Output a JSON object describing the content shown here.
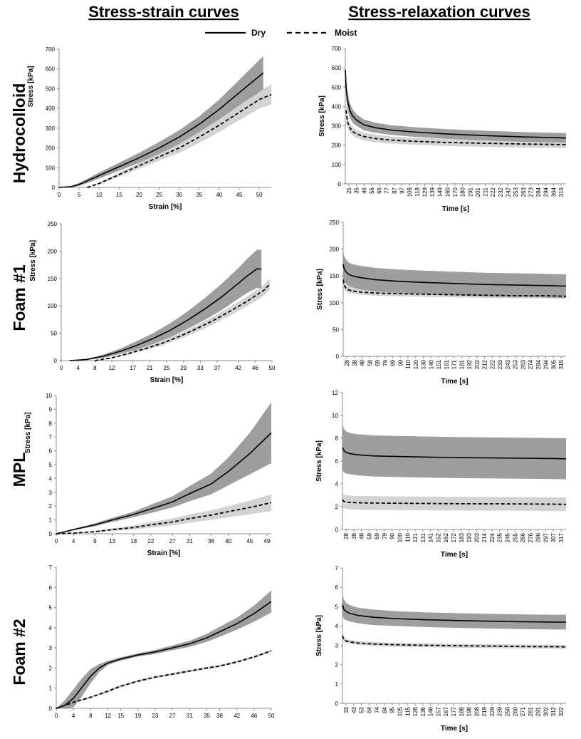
{
  "header": {
    "left_title": "Stress-strain curves",
    "right_title": "Stress-relaxation curves"
  },
  "legend": {
    "dry_label": "Dry",
    "moist_label": "Moist",
    "placement": "top-center"
  },
  "rows": [
    "Hydrocolloid",
    "Foam #1",
    "MPL",
    "Foam #2"
  ],
  "colors": {
    "dry": "#000000",
    "moist": "#000000",
    "band_dry": "#9e9e9e",
    "band_moist": "#d3d3d3",
    "axis": "#8c8c8c"
  },
  "chart_data": [
    {
      "type": "line",
      "row": "Hydrocolloid",
      "panel": "stress-strain",
      "xlabel": "Strain [%]",
      "ylabel": "Stress [kPa]",
      "x_ticks": [
        "0",
        "5",
        "10",
        "15",
        "20",
        "25",
        "30",
        "35",
        "40",
        "45",
        "50"
      ],
      "y_ticks": [
        "0",
        "100",
        "200",
        "300",
        "400",
        "500",
        "600",
        "700"
      ],
      "xlim": [
        0,
        53
      ],
      "ylim": [
        0,
        700
      ],
      "grid": false,
      "series": [
        {
          "name": "Dry",
          "style": "solid",
          "x": [
            0,
            3,
            5,
            10,
            15,
            20,
            25,
            30,
            35,
            40,
            45,
            48,
            51
          ],
          "y": [
            0,
            4,
            15,
            60,
            105,
            150,
            200,
            255,
            320,
            395,
            480,
            530,
            580
          ],
          "band": [
            0,
            3,
            8,
            15,
            20,
            25,
            30,
            35,
            40,
            50,
            65,
            75,
            85
          ]
        },
        {
          "name": "Moist",
          "style": "dashed",
          "x": [
            7,
            10,
            15,
            20,
            25,
            30,
            35,
            40,
            45,
            50,
            53
          ],
          "y": [
            0,
            20,
            65,
            110,
            155,
            200,
            255,
            315,
            380,
            445,
            470
          ],
          "band": [
            0,
            5,
            10,
            15,
            20,
            25,
            30,
            35,
            40,
            45,
            50
          ]
        }
      ]
    },
    {
      "type": "line",
      "row": "Hydrocolloid",
      "panel": "stress-relaxation",
      "xlabel": "Time [s]",
      "ylabel": "Stress [kPa]",
      "x_ticks": [
        "25",
        "35",
        "46",
        "56",
        "66",
        "77",
        "87",
        "97",
        "108",
        "118",
        "129",
        "139",
        "149",
        "160",
        "170",
        "180",
        "191",
        "201",
        "211",
        "222",
        "232",
        "242",
        "253",
        "263",
        "273",
        "284",
        "294",
        "304",
        "315"
      ],
      "y_ticks": [
        "0",
        "100",
        "200",
        "300",
        "400",
        "500",
        "600",
        "700"
      ],
      "xlim": [
        25,
        322
      ],
      "ylim": [
        0,
        700
      ],
      "grid": false,
      "series": [
        {
          "name": "Dry",
          "style": "solid",
          "x": [
            25,
            26,
            28,
            31,
            35,
            40,
            50,
            66,
            87,
            118,
            160,
            211,
            263,
            315,
            322
          ],
          "y": [
            590,
            500,
            430,
            380,
            350,
            330,
            305,
            290,
            278,
            268,
            258,
            250,
            243,
            238,
            237
          ],
          "band": [
            60,
            55,
            45,
            40,
            35,
            30,
            28,
            26,
            25,
            25,
            25,
            25,
            25,
            25,
            25
          ]
        },
        {
          "name": "Moist",
          "style": "dashed",
          "x": [
            26,
            28,
            31,
            35,
            40,
            50,
            66,
            87,
            118,
            160,
            211,
            263,
            315,
            322
          ],
          "y": [
            380,
            320,
            290,
            270,
            258,
            245,
            234,
            226,
            220,
            214,
            210,
            206,
            203,
            203
          ],
          "band": [
            40,
            30,
            25,
            22,
            20,
            20,
            20,
            18,
            18,
            18,
            18,
            18,
            18,
            18
          ]
        }
      ]
    },
    {
      "type": "line",
      "row": "Foam #1",
      "panel": "stress-strain",
      "xlabel": "Strain [%]",
      "ylabel": "Stress [kPa]",
      "x_ticks": [
        "0",
        "4",
        "8",
        "12",
        "17",
        "21",
        "25",
        "29",
        "33",
        "37",
        "42",
        "46",
        "50"
      ],
      "y_ticks": [
        "0",
        "50",
        "100",
        "150",
        "200",
        "250"
      ],
      "xlim": [
        0,
        50
      ],
      "ylim": [
        0,
        250
      ],
      "grid": false,
      "series": [
        {
          "name": "Dry",
          "style": "solid",
          "x": [
            2,
            6,
            10,
            14,
            18,
            22,
            26,
            30,
            34,
            38,
            42,
            44,
            46.5,
            47.5
          ],
          "y": [
            0,
            2,
            8,
            17,
            28,
            41,
            56,
            74,
            94,
            116,
            141,
            154,
            168,
            167
          ],
          "band": [
            0,
            1,
            3,
            5,
            8,
            10,
            13,
            16,
            20,
            24,
            28,
            31,
            35,
            35
          ]
        },
        {
          "name": "Moist",
          "style": "dashed",
          "x": [
            8,
            12,
            16,
            20,
            24,
            28,
            32,
            36,
            40,
            44,
            48,
            49.5
          ],
          "y": [
            0,
            5,
            13,
            22,
            32,
            44,
            58,
            73,
            90,
            108,
            128,
            140
          ],
          "band": [
            0,
            1,
            2,
            3,
            4,
            5,
            6,
            7,
            8,
            9,
            10,
            10
          ]
        }
      ]
    },
    {
      "type": "line",
      "row": "Foam #1",
      "panel": "stress-relaxation",
      "xlabel": "Time [s]",
      "ylabel": "Stress [kPa]",
      "x_ticks": [
        "28",
        "38",
        "48",
        "58",
        "69",
        "79",
        "89",
        "99",
        "110",
        "120",
        "130",
        "140",
        "151",
        "161",
        "171",
        "181",
        "192",
        "202",
        "212",
        "222",
        "233",
        "243",
        "253",
        "263",
        "274",
        "284",
        "294",
        "305",
        "315"
      ],
      "y_ticks": [
        "0",
        "50",
        "100",
        "150",
        "200",
        "250"
      ],
      "xlim": [
        28,
        320
      ],
      "ylim": [
        0,
        250
      ],
      "grid": false,
      "series": [
        {
          "name": "Dry",
          "style": "solid",
          "x": [
            28,
            29,
            31,
            35,
            40,
            50,
            70,
            100,
            130,
            171,
            212,
            253,
            294,
            320
          ],
          "y": [
            172,
            165,
            159,
            153,
            150,
            147,
            143,
            140,
            138,
            136,
            134,
            133,
            132,
            131
          ],
          "band": [
            25,
            24,
            23,
            22,
            22,
            22,
            22,
            22,
            22,
            22,
            22,
            22,
            22,
            22
          ]
        },
        {
          "name": "Moist",
          "style": "dashed",
          "x": [
            28,
            29,
            31,
            35,
            40,
            50,
            70,
            100,
            130,
            171,
            212,
            253,
            294,
            320
          ],
          "y": [
            143,
            135,
            128,
            124,
            122,
            120,
            118,
            117,
            116,
            115,
            114,
            113,
            113,
            112
          ],
          "band": [
            8,
            7,
            6,
            6,
            5,
            5,
            5,
            5,
            5,
            5,
            5,
            5,
            5,
            5
          ]
        }
      ]
    },
    {
      "type": "line",
      "row": "MPL",
      "panel": "stress-strain",
      "xlabel": "Strain [%]",
      "ylabel": "Stress [kPa]",
      "x_ticks": [
        "0",
        "4",
        "9",
        "13",
        "18",
        "22",
        "27",
        "31",
        "36",
        "40",
        "45",
        "49"
      ],
      "y_ticks": [
        "0",
        "1",
        "2",
        "3",
        "4",
        "5",
        "6",
        "7",
        "8",
        "9",
        "10"
      ],
      "xlim": [
        0,
        50
      ],
      "ylim": [
        0,
        10
      ],
      "grid": false,
      "series": [
        {
          "name": "Dry",
          "style": "solid",
          "x": [
            0,
            4,
            9,
            13,
            18,
            22,
            27,
            31,
            36,
            40,
            45,
            50
          ],
          "y": [
            0,
            0.3,
            0.65,
            1.0,
            1.4,
            1.8,
            2.3,
            2.9,
            3.6,
            4.5,
            5.8,
            7.3
          ],
          "band": [
            0,
            0.05,
            0.1,
            0.15,
            0.2,
            0.3,
            0.4,
            0.55,
            0.75,
            1.0,
            1.5,
            2.2
          ]
        },
        {
          "name": "Moist",
          "style": "dashed",
          "x": [
            0,
            4,
            9,
            13,
            18,
            22,
            27,
            31,
            36,
            40,
            45,
            50
          ],
          "y": [
            0,
            0.05,
            0.15,
            0.3,
            0.45,
            0.65,
            0.85,
            1.1,
            1.35,
            1.6,
            1.9,
            2.25
          ],
          "band": [
            0,
            0.02,
            0.05,
            0.1,
            0.15,
            0.2,
            0.25,
            0.3,
            0.35,
            0.4,
            0.5,
            0.6
          ]
        }
      ]
    },
    {
      "type": "line",
      "row": "MPL",
      "panel": "stress-relaxation",
      "xlabel": "Time [s]",
      "ylabel": "Stress [kPa]",
      "x_ticks": [
        "28",
        "38",
        "48",
        "59",
        "69",
        "79",
        "90",
        "100",
        "110",
        "121",
        "131",
        "141",
        "152",
        "162",
        "172",
        "183",
        "193",
        "203",
        "214",
        "224",
        "235",
        "245",
        "255",
        "266",
        "276",
        "286",
        "297",
        "307",
        "317"
      ],
      "y_ticks": [
        "0",
        "2",
        "4",
        "6",
        "8",
        "10",
        "12"
      ],
      "xlim": [
        28,
        322
      ],
      "ylim": [
        0,
        12
      ],
      "grid": false,
      "series": [
        {
          "name": "Dry",
          "style": "solid",
          "x": [
            28,
            30,
            33,
            38,
            48,
            69,
            100,
            141,
            183,
            224,
            266,
            307,
            322
          ],
          "y": [
            7.2,
            6.9,
            6.75,
            6.65,
            6.55,
            6.45,
            6.4,
            6.35,
            6.3,
            6.28,
            6.25,
            6.22,
            6.2
          ],
          "band": [
            2.0,
            1.9,
            1.85,
            1.8,
            1.8,
            1.8,
            1.8,
            1.8,
            1.8,
            1.8,
            1.8,
            1.8,
            1.8
          ]
        },
        {
          "name": "Moist",
          "style": "dashed",
          "x": [
            28,
            30,
            33,
            38,
            48,
            69,
            100,
            141,
            183,
            224,
            266,
            307,
            322
          ],
          "y": [
            2.6,
            2.45,
            2.4,
            2.37,
            2.34,
            2.32,
            2.3,
            2.28,
            2.26,
            2.25,
            2.24,
            2.22,
            2.2
          ],
          "band": [
            0.6,
            0.6,
            0.6,
            0.6,
            0.6,
            0.6,
            0.6,
            0.6,
            0.6,
            0.6,
            0.6,
            0.6,
            0.6
          ]
        }
      ]
    },
    {
      "type": "line",
      "row": "Foam #2",
      "panel": "stress-strain",
      "xlabel": "",
      "ylabel": "",
      "x_ticks": [
        "0",
        "4",
        "8",
        "12",
        "15",
        "19",
        "23",
        "27",
        "31",
        "35",
        "38",
        "42",
        "46",
        "50"
      ],
      "y_ticks": [
        "0",
        "1",
        "2",
        "3",
        "4",
        "5",
        "6",
        "7"
      ],
      "xlim": [
        0,
        50
      ],
      "ylim": [
        0,
        7
      ],
      "grid": false,
      "series": [
        {
          "name": "Dry",
          "style": "solid",
          "x": [
            0,
            2,
            4,
            6,
            8,
            10,
            12,
            15,
            19,
            23,
            27,
            31,
            35,
            38,
            42,
            46,
            50
          ],
          "y": [
            0,
            0.15,
            0.5,
            1.05,
            1.6,
            2.0,
            2.25,
            2.45,
            2.65,
            2.8,
            3.0,
            3.2,
            3.5,
            3.8,
            4.2,
            4.7,
            5.3
          ],
          "band": [
            0,
            0.25,
            0.45,
            0.45,
            0.35,
            0.2,
            0.1,
            0.08,
            0.08,
            0.1,
            0.12,
            0.15,
            0.2,
            0.25,
            0.3,
            0.4,
            0.55
          ]
        },
        {
          "name": "Moist",
          "style": "dashed",
          "x": [
            0,
            4,
            8,
            12,
            15,
            19,
            23,
            27,
            31,
            35,
            38,
            42,
            46,
            50
          ],
          "y": [
            0,
            0.3,
            0.55,
            0.85,
            1.1,
            1.35,
            1.55,
            1.7,
            1.85,
            2.0,
            2.1,
            2.3,
            2.55,
            2.85
          ],
          "band": [
            0,
            0.05,
            0.06,
            0.06,
            0.06,
            0.06,
            0.06,
            0.06,
            0.06,
            0.06,
            0.06,
            0.06,
            0.06,
            0.06
          ]
        }
      ]
    },
    {
      "type": "line",
      "row": "Foam #2",
      "panel": "stress-relaxation",
      "xlabel": "Time [s]",
      "ylabel": "Stress [kPa]",
      "x_ticks": [
        "33",
        "43",
        "53",
        "64",
        "74",
        "84",
        "95",
        "105",
        "115",
        "126",
        "136",
        "146",
        "157",
        "167",
        "177",
        "188",
        "198",
        "208",
        "219",
        "229",
        "239",
        "250",
        "260",
        "271",
        "281",
        "291",
        "302",
        "312",
        "322"
      ],
      "y_ticks": [
        "0",
        "1",
        "2",
        "3",
        "4",
        "5",
        "6",
        "7"
      ],
      "xlim": [
        33,
        330
      ],
      "ylim": [
        0,
        7
      ],
      "grid": false,
      "series": [
        {
          "name": "Dry",
          "style": "solid",
          "x": [
            33,
            35,
            38,
            43,
            53,
            74,
            105,
            146,
            188,
            229,
            271,
            312,
            330
          ],
          "y": [
            5.1,
            4.85,
            4.75,
            4.65,
            4.55,
            4.45,
            4.38,
            4.32,
            4.28,
            4.25,
            4.22,
            4.2,
            4.2
          ],
          "band": [
            0.55,
            0.5,
            0.45,
            0.42,
            0.4,
            0.4,
            0.38,
            0.38,
            0.38,
            0.38,
            0.38,
            0.38,
            0.38
          ]
        },
        {
          "name": "Moist",
          "style": "dashed",
          "x": [
            33,
            35,
            38,
            43,
            53,
            74,
            105,
            146,
            188,
            229,
            271,
            312,
            330
          ],
          "y": [
            3.5,
            3.3,
            3.22,
            3.18,
            3.12,
            3.07,
            3.03,
            3.0,
            2.98,
            2.96,
            2.94,
            2.93,
            2.92
          ],
          "band": [
            0.12,
            0.1,
            0.1,
            0.1,
            0.1,
            0.1,
            0.1,
            0.1,
            0.1,
            0.1,
            0.1,
            0.1,
            0.1
          ]
        }
      ]
    }
  ]
}
